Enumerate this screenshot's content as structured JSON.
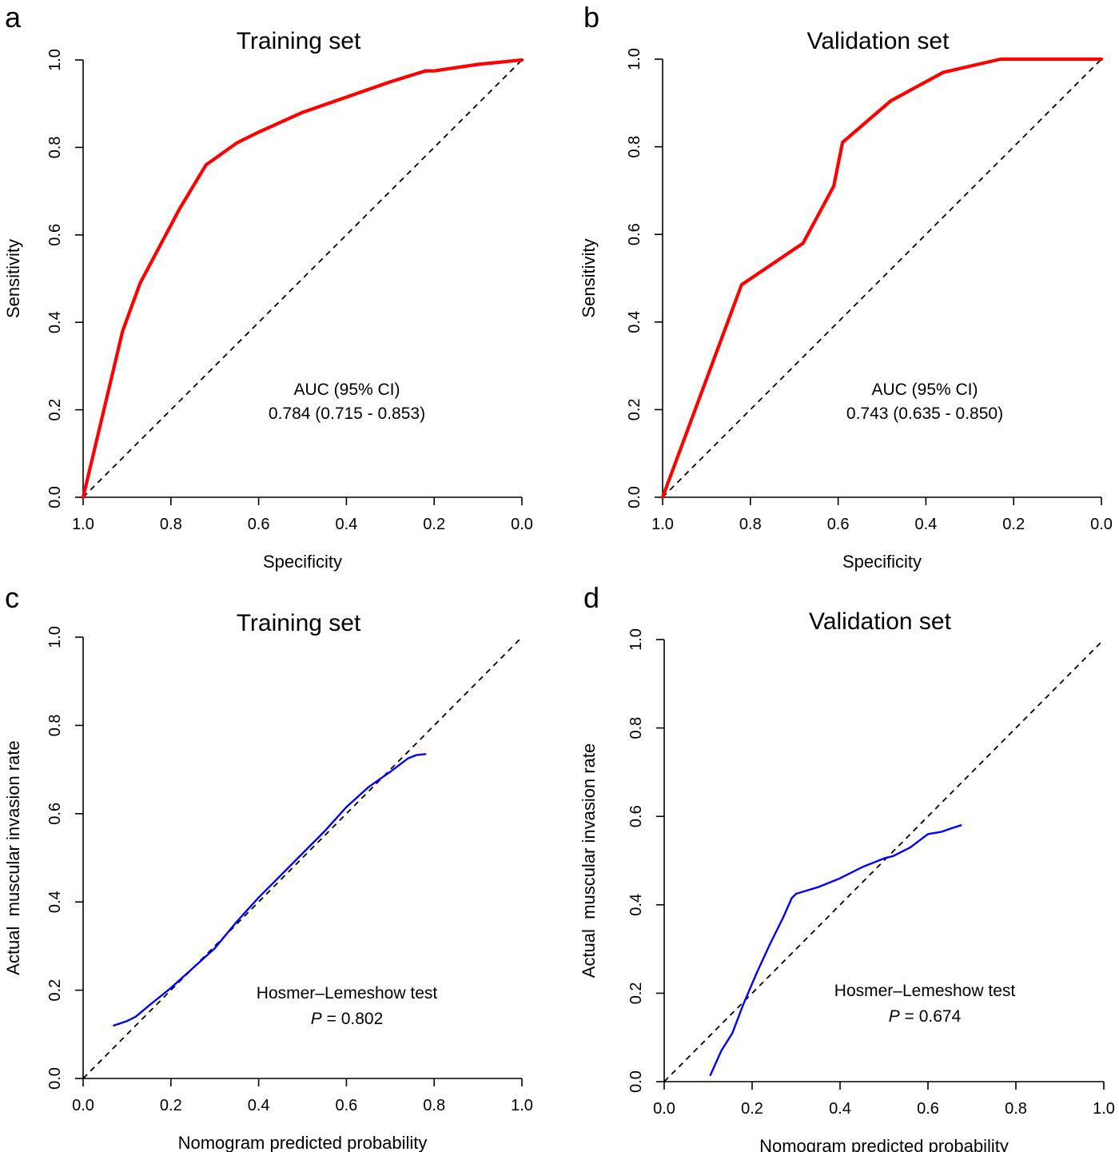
{
  "chart_data": [
    {
      "panel": "a",
      "type": "line",
      "title": "Training set",
      "xlabel": "Specificity",
      "ylabel": "Sensitivity",
      "xlim": [
        1.0,
        0.0
      ],
      "ylim": [
        0.0,
        1.0
      ],
      "x_reversed": true,
      "xticks": [
        "1.0",
        "0.8",
        "0.6",
        "0.4",
        "0.2",
        "0.0"
      ],
      "yticks": [
        "0.0",
        "0.2",
        "0.4",
        "0.6",
        "0.8",
        "1.0"
      ],
      "reference_line": "diagonal",
      "series": [
        {
          "color": "#ff0000",
          "x": [
            1.0,
            0.91,
            0.87,
            0.78,
            0.72,
            0.65,
            0.6,
            0.5,
            0.4,
            0.3,
            0.22,
            0.2,
            0.1,
            0.0
          ],
          "y": [
            0.0,
            0.38,
            0.49,
            0.66,
            0.76,
            0.81,
            0.835,
            0.88,
            0.915,
            0.95,
            0.975,
            0.975,
            0.99,
            1.0
          ]
        }
      ],
      "annotation_lines": [
        "AUC (95% CI)",
        "0.784 (0.715 - 0.853)"
      ]
    },
    {
      "panel": "b",
      "type": "line",
      "title": "Validation set",
      "xlabel": "Specificity",
      "ylabel": "Sensitivity",
      "xlim": [
        1.0,
        0.0
      ],
      "ylim": [
        0.0,
        1.0
      ],
      "x_reversed": true,
      "xticks": [
        "1.0",
        "0.8",
        "0.6",
        "0.4",
        "0.2",
        "0.0"
      ],
      "yticks": [
        "0.0",
        "0.2",
        "0.4",
        "0.6",
        "0.8",
        "1.0"
      ],
      "reference_line": "diagonal",
      "series": [
        {
          "color": "#ff0000",
          "x": [
            1.0,
            0.82,
            0.68,
            0.61,
            0.59,
            0.48,
            0.36,
            0.23,
            0.0
          ],
          "y": [
            0.0,
            0.485,
            0.58,
            0.71,
            0.81,
            0.905,
            0.97,
            1.0,
            1.0
          ]
        }
      ],
      "annotation_lines": [
        "AUC (95% CI)",
        "0.743 (0.635 - 0.850)"
      ]
    },
    {
      "panel": "c",
      "type": "line",
      "title": "Training set",
      "xlabel": "Nomogram predicted probability",
      "ylabel": "Actual  muscular invasion rate",
      "xlim": [
        0.0,
        1.0
      ],
      "ylim": [
        0.0,
        1.0
      ],
      "xticks": [
        "0.0",
        "0.2",
        "0.4",
        "0.6",
        "0.8",
        "1.0"
      ],
      "yticks": [
        "0.0",
        "0.2",
        "0.4",
        "0.6",
        "0.8",
        "1.0"
      ],
      "reference_line": "diagonal",
      "series": [
        {
          "color": "#0000ff",
          "x": [
            0.07,
            0.1,
            0.12,
            0.15,
            0.2,
            0.25,
            0.3,
            0.35,
            0.4,
            0.45,
            0.5,
            0.55,
            0.6,
            0.65,
            0.7,
            0.74,
            0.76,
            0.78
          ],
          "y": [
            0.12,
            0.13,
            0.14,
            0.165,
            0.205,
            0.25,
            0.295,
            0.355,
            0.41,
            0.46,
            0.51,
            0.56,
            0.615,
            0.66,
            0.695,
            0.725,
            0.733,
            0.735
          ]
        }
      ],
      "annotation_lines": [
        "Hosmer–Lemeshow test"
      ],
      "p_label": "P",
      "p_value": " = 0.802"
    },
    {
      "panel": "d",
      "type": "line",
      "title": "Validation set",
      "xlabel": "Nomogram predicted probability",
      "ylabel": "Actual  muscular invasion rate",
      "xlim": [
        0.0,
        1.0
      ],
      "ylim": [
        0.0,
        1.0
      ],
      "xticks": [
        "0.0",
        "0.2",
        "0.4",
        "0.6",
        "0.8",
        "1.0"
      ],
      "yticks": [
        "0.0",
        "0.2",
        "0.4",
        "0.6",
        "0.8",
        "1.0"
      ],
      "reference_line": "diagonal",
      "series": [
        {
          "color": "#0000ff",
          "x": [
            0.105,
            0.13,
            0.155,
            0.18,
            0.21,
            0.24,
            0.27,
            0.29,
            0.3,
            0.35,
            0.4,
            0.45,
            0.5,
            0.52,
            0.56,
            0.6,
            0.63,
            0.65,
            0.675
          ],
          "y": [
            0.015,
            0.07,
            0.11,
            0.175,
            0.245,
            0.31,
            0.37,
            0.415,
            0.425,
            0.44,
            0.46,
            0.485,
            0.505,
            0.51,
            0.53,
            0.56,
            0.565,
            0.572,
            0.58
          ]
        }
      ],
      "annotation_lines": [
        "Hosmer–Lemeshow test"
      ],
      "p_label": "P",
      "p_value": " = 0.674"
    }
  ]
}
